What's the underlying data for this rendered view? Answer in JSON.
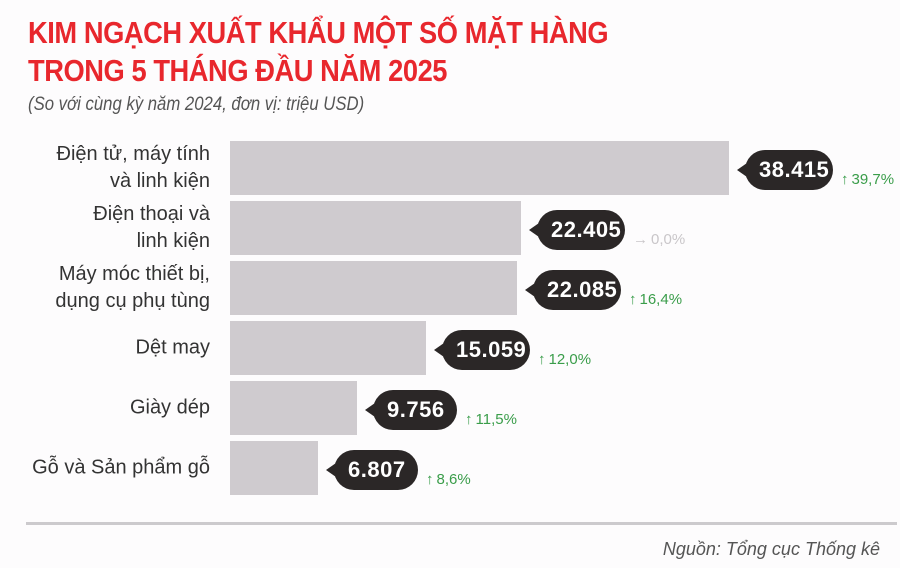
{
  "header": {
    "title_line1": "KIM NGẠCH XUẤT KHẨU MỘT SỐ MẶT HÀNG",
    "title_line2": "TRONG 5 THÁNG ĐẦU NĂM 2025",
    "subtitle": "(So với cùng kỳ năm 2024, đơn vị: triệu USD)"
  },
  "footer": {
    "source": "Nguồn: Tổng cục Thống kê"
  },
  "colors": {
    "title": "#e8272d",
    "bar": "#cfcbcf",
    "callout": "#2b2727",
    "increase": "#3a9d4a",
    "neutral": "#c9c6c9"
  },
  "rows": [
    {
      "label_line1": "Điện tử, máy tính",
      "label_line2": "và linh kiện",
      "value": "38.415",
      "change": "39,7%",
      "arrow": "↑",
      "trend": "up"
    },
    {
      "label_line1": "Điện thoại và",
      "label_line2": "linh kiện",
      "value": "22.405",
      "change": "0,0%",
      "arrow": "→",
      "trend": "flat"
    },
    {
      "label_line1": "Máy móc thiết bị,",
      "label_line2": "dụng cụ phụ tùng",
      "value": "22.085",
      "change": "16,4%",
      "arrow": "↑",
      "trend": "up"
    },
    {
      "label_line1": "Dệt may",
      "label_line2": "",
      "value": "15.059",
      "change": "12,0%",
      "arrow": "↑",
      "trend": "up"
    },
    {
      "label_line1": "Giày dép",
      "label_line2": "",
      "value": "9.756",
      "change": "11,5%",
      "arrow": "↑",
      "trend": "up"
    },
    {
      "label_line1": "Gỗ và Sản phẩm gỗ",
      "label_line2": "",
      "value": "6.807",
      "change": "8,6%",
      "arrow": "↑",
      "trend": "up"
    }
  ],
  "chart_data": {
    "type": "bar",
    "orientation": "horizontal",
    "title": "KIM NGẠCH XUẤT KHẨU MỘT SỐ MẶT HÀNG TRONG 5 THÁNG ĐẦU NĂM 2025",
    "subtitle": "(So với cùng kỳ năm 2024, đơn vị: triệu USD)",
    "xlabel": "",
    "ylabel": "",
    "categories": [
      "Điện tử, máy tính và linh kiện",
      "Điện thoại và linh kiện",
      "Máy móc thiết bị, dụng cụ phụ tùng",
      "Dệt may",
      "Giày dép",
      "Gỗ và Sản phẩm gỗ"
    ],
    "series": [
      {
        "name": "Kim ngạch (triệu USD)",
        "values": [
          38415,
          22405,
          22085,
          15059,
          9756,
          6807
        ]
      },
      {
        "name": "Tăng so với cùng kỳ 2024 (%)",
        "values": [
          39.7,
          0.0,
          16.4,
          12.0,
          11.5,
          8.6
        ]
      }
    ],
    "grid": false,
    "legend": "none",
    "source": "Nguồn: Tổng cục Thống kê"
  }
}
